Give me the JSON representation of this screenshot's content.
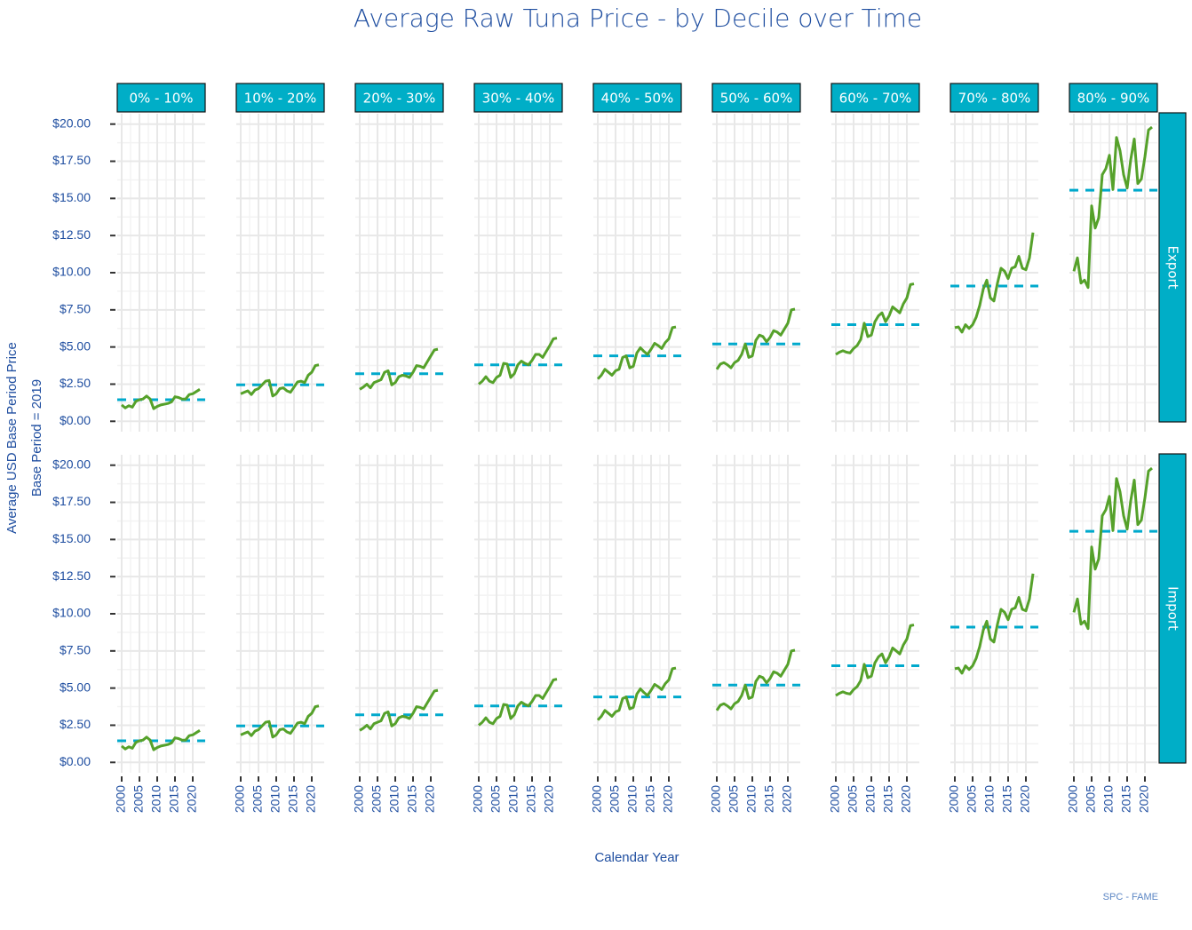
{
  "chart_data": {
    "type": "line",
    "title": "Average Raw Tuna Price - by Decile over Time",
    "xlabel": "Calendar Year",
    "ylabel": [
      "Average USD Base Period Price",
      "Base Period = 2019"
    ],
    "caption": "SPC - FAME",
    "line_color": "#55a12a",
    "reference_color": "#00a9cc",
    "grid": true,
    "x": [
      2000,
      2001,
      2002,
      2003,
      2004,
      2005,
      2006,
      2007,
      2008,
      2009,
      2010,
      2011,
      2012,
      2013,
      2014,
      2015,
      2016,
      2017,
      2018,
      2019,
      2020,
      2021,
      2022
    ],
    "xlim": [
      1998.75,
      2023.5
    ],
    "xticks": [
      2000,
      2005,
      2010,
      2015,
      2020
    ],
    "ylim": [
      -0.7,
      20.7
    ],
    "yticks": [
      {
        "value": 0,
        "label": "$0.00"
      },
      {
        "value": 2.5,
        "label": "$2.50"
      },
      {
        "value": 5,
        "label": "$5.00"
      },
      {
        "value": 7.5,
        "label": "$7.50"
      },
      {
        "value": 10,
        "label": "$10.00"
      },
      {
        "value": 12.5,
        "label": "$12.50"
      },
      {
        "value": 15,
        "label": "$15.00"
      },
      {
        "value": 17.5,
        "label": "$17.50"
      },
      {
        "value": 20,
        "label": "$20.00"
      }
    ],
    "columns": [
      "0% - 10%",
      "10% - 20%",
      "20% - 30%",
      "30% - 40%",
      "40% - 50%",
      "50% - 60%",
      "60% - 70%",
      "70% - 80%",
      "80% - 90%"
    ],
    "rows": [
      {
        "name": "Export",
        "reference": [
          1.45,
          2.45,
          3.2,
          3.8,
          4.4,
          5.2,
          6.5,
          9.1,
          15.55
        ],
        "values": [
          [
            1.1,
            0.9,
            1.05,
            0.95,
            1.35,
            1.45,
            1.5,
            1.7,
            1.5,
            0.85,
            1.0,
            1.1,
            1.15,
            1.2,
            1.3,
            1.65,
            1.6,
            1.5,
            1.5,
            1.8,
            1.85,
            2.0,
            2.15
          ],
          [
            1.85,
            1.95,
            2.05,
            1.8,
            2.1,
            2.2,
            2.45,
            2.7,
            2.75,
            1.7,
            1.85,
            2.2,
            2.25,
            2.05,
            1.95,
            2.3,
            2.65,
            2.7,
            2.6,
            3.1,
            3.3,
            3.75,
            3.8
          ],
          [
            2.15,
            2.3,
            2.5,
            2.25,
            2.6,
            2.7,
            2.8,
            3.3,
            3.4,
            2.45,
            2.6,
            3.0,
            3.1,
            3.05,
            2.95,
            3.3,
            3.75,
            3.7,
            3.6,
            4.0,
            4.4,
            4.8,
            4.85
          ],
          [
            2.5,
            2.7,
            3.0,
            2.7,
            2.6,
            2.95,
            3.1,
            3.9,
            3.85,
            2.95,
            3.2,
            3.8,
            4.05,
            3.9,
            3.8,
            4.1,
            4.5,
            4.5,
            4.3,
            4.7,
            5.1,
            5.55,
            5.6
          ],
          [
            2.85,
            3.1,
            3.5,
            3.3,
            3.1,
            3.4,
            3.5,
            4.3,
            4.4,
            3.6,
            3.7,
            4.6,
            4.95,
            4.7,
            4.5,
            4.85,
            5.25,
            5.1,
            4.9,
            5.3,
            5.55,
            6.3,
            6.35
          ],
          [
            3.5,
            3.85,
            3.95,
            3.8,
            3.6,
            3.95,
            4.1,
            4.5,
            5.2,
            4.3,
            4.4,
            5.45,
            5.8,
            5.7,
            5.35,
            5.65,
            6.1,
            6.0,
            5.8,
            6.2,
            6.6,
            7.5,
            7.55
          ],
          [
            4.5,
            4.65,
            4.75,
            4.65,
            4.6,
            4.9,
            5.1,
            5.5,
            6.6,
            5.7,
            5.8,
            6.7,
            7.1,
            7.3,
            6.7,
            7.1,
            7.7,
            7.5,
            7.3,
            7.9,
            8.3,
            9.2,
            9.25
          ],
          [
            6.3,
            6.35,
            6.0,
            6.5,
            6.25,
            6.5,
            7.0,
            7.8,
            8.9,
            9.5,
            8.3,
            8.1,
            9.3,
            10.3,
            10.1,
            9.6,
            10.3,
            10.4,
            11.1,
            10.3,
            10.2,
            11.0,
            12.7
          ],
          [
            10.1,
            11.0,
            9.3,
            9.5,
            9.0,
            14.5,
            13.0,
            13.7,
            16.6,
            17.0,
            17.9,
            15.6,
            19.1,
            18.2,
            16.6,
            15.7,
            17.6,
            19.0,
            16.0,
            16.3,
            17.8,
            19.6,
            19.8
          ]
        ]
      },
      {
        "name": "Import",
        "reference": [
          1.45,
          2.45,
          3.2,
          3.8,
          4.4,
          5.2,
          6.5,
          9.1,
          15.55
        ],
        "values": [
          [
            1.1,
            0.9,
            1.05,
            0.95,
            1.35,
            1.45,
            1.5,
            1.7,
            1.5,
            0.85,
            1.0,
            1.1,
            1.15,
            1.2,
            1.3,
            1.65,
            1.6,
            1.5,
            1.5,
            1.8,
            1.85,
            2.0,
            2.15
          ],
          [
            1.85,
            1.95,
            2.05,
            1.8,
            2.1,
            2.2,
            2.45,
            2.7,
            2.75,
            1.7,
            1.85,
            2.2,
            2.25,
            2.05,
            1.95,
            2.3,
            2.65,
            2.7,
            2.6,
            3.1,
            3.3,
            3.75,
            3.8
          ],
          [
            2.15,
            2.3,
            2.5,
            2.25,
            2.6,
            2.7,
            2.8,
            3.3,
            3.4,
            2.45,
            2.6,
            3.0,
            3.1,
            3.05,
            2.95,
            3.3,
            3.75,
            3.7,
            3.6,
            4.0,
            4.4,
            4.8,
            4.85
          ],
          [
            2.5,
            2.7,
            3.0,
            2.7,
            2.6,
            2.95,
            3.1,
            3.9,
            3.85,
            2.95,
            3.2,
            3.8,
            4.05,
            3.9,
            3.8,
            4.1,
            4.5,
            4.5,
            4.3,
            4.7,
            5.1,
            5.55,
            5.6
          ],
          [
            2.85,
            3.1,
            3.5,
            3.3,
            3.1,
            3.4,
            3.5,
            4.3,
            4.4,
            3.6,
            3.7,
            4.6,
            4.95,
            4.7,
            4.5,
            4.85,
            5.25,
            5.1,
            4.9,
            5.3,
            5.55,
            6.3,
            6.35
          ],
          [
            3.5,
            3.85,
            3.95,
            3.8,
            3.6,
            3.95,
            4.1,
            4.5,
            5.2,
            4.3,
            4.4,
            5.45,
            5.8,
            5.7,
            5.35,
            5.65,
            6.1,
            6.0,
            5.8,
            6.2,
            6.6,
            7.5,
            7.55
          ],
          [
            4.5,
            4.65,
            4.75,
            4.65,
            4.6,
            4.9,
            5.1,
            5.5,
            6.6,
            5.7,
            5.8,
            6.7,
            7.1,
            7.3,
            6.7,
            7.1,
            7.7,
            7.5,
            7.3,
            7.9,
            8.3,
            9.2,
            9.25
          ],
          [
            6.3,
            6.35,
            6.0,
            6.5,
            6.25,
            6.5,
            7.0,
            7.8,
            8.9,
            9.5,
            8.3,
            8.1,
            9.3,
            10.3,
            10.1,
            9.6,
            10.3,
            10.4,
            11.1,
            10.3,
            10.2,
            11.0,
            12.7
          ],
          [
            10.1,
            11.0,
            9.3,
            9.5,
            9.0,
            14.5,
            13.0,
            13.7,
            16.6,
            17.0,
            17.9,
            15.6,
            19.1,
            18.2,
            16.6,
            15.7,
            17.6,
            19.0,
            16.0,
            16.3,
            17.8,
            19.6,
            19.8
          ]
        ]
      }
    ]
  }
}
